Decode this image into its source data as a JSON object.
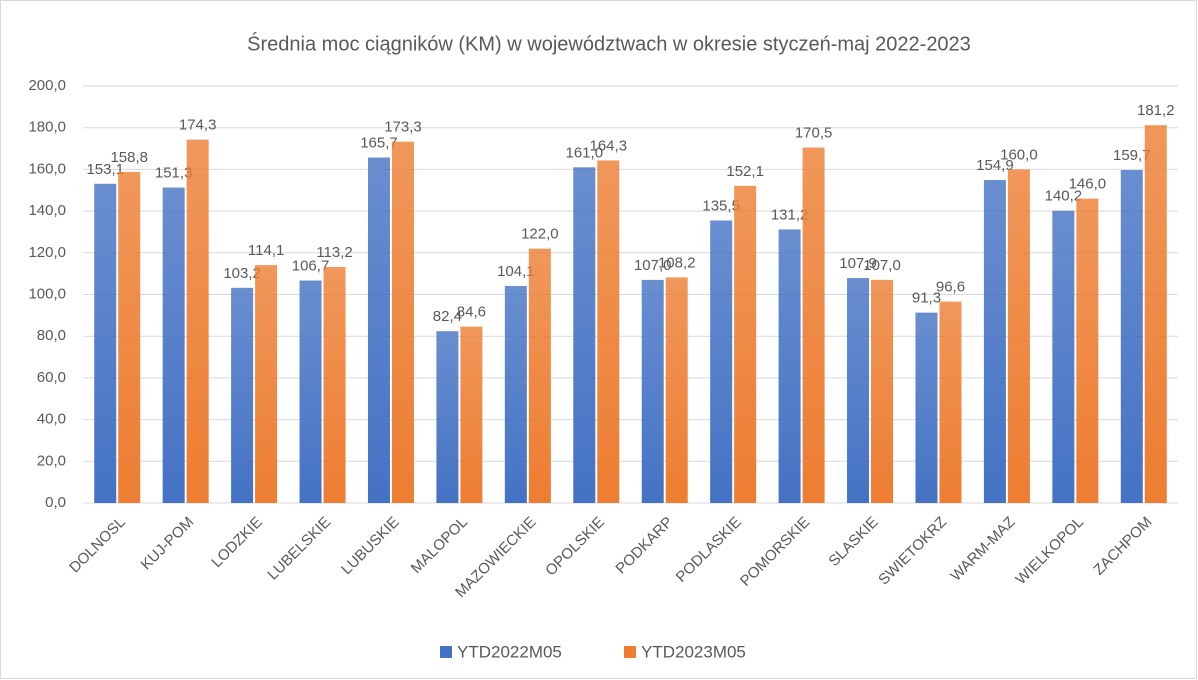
{
  "chart_data": {
    "type": "bar",
    "title": "Średnia moc ciągników (KM) w województwach w okresie styczeń-maj 2022-2023",
    "categories": [
      "DOLNOSL",
      "KUJ-POM",
      "LODZKIE",
      "LUBELSKIE",
      "LUBUSKIE",
      "MALOPOL",
      "MAZOWIECKIE",
      "OPOLSKIE",
      "PODKARP",
      "PODLASKIE",
      "POMORSKIE",
      "SLASKIE",
      "SWIETOKRZ",
      "WARM-MAZ",
      "WIELKOPOL",
      "ZACHPOM"
    ],
    "series": [
      {
        "name": "YTD2022M05",
        "color": "#4472c4",
        "values": [
          153.1,
          151.3,
          103.2,
          106.7,
          165.7,
          82.4,
          104.1,
          161.0,
          107.0,
          135.5,
          131.2,
          107.9,
          91.3,
          154.9,
          140.2,
          159.7
        ],
        "value_labels": [
          "153,1",
          "151,3",
          "103,2",
          "106,7",
          "165,7",
          "82,4",
          "104,1",
          "161,0",
          "107,0",
          "135,5",
          "131,2",
          "107,9",
          "91,3",
          "154,9",
          "140,2",
          "159,7"
        ]
      },
      {
        "name": "YTD2023M05",
        "color": "#ed7d31",
        "values": [
          158.8,
          174.3,
          114.1,
          113.2,
          173.3,
          84.6,
          122.0,
          164.3,
          108.2,
          152.1,
          170.5,
          107.0,
          96.6,
          160.0,
          146.0,
          181.2
        ],
        "value_labels": [
          "158,8",
          "174,3",
          "114,1",
          "113,2",
          "173,3",
          "84,6",
          "122,0",
          "164,3",
          "108,2",
          "152,1",
          "170,5",
          "107,0",
          "96,6",
          "160,0",
          "146,0",
          "181,2"
        ]
      }
    ],
    "ylim": [
      0,
      200
    ],
    "yticks": [
      {
        "value": 0,
        "label": "0,0"
      },
      {
        "value": 20,
        "label": "20,0"
      },
      {
        "value": 40,
        "label": "40,0"
      },
      {
        "value": 60,
        "label": "60,0"
      },
      {
        "value": 80,
        "label": "80,0"
      },
      {
        "value": 100,
        "label": "100,0"
      },
      {
        "value": 120,
        "label": "120,0"
      },
      {
        "value": 140,
        "label": "140,0"
      },
      {
        "value": 160,
        "label": "160,0"
      },
      {
        "value": 180,
        "label": "180,0"
      },
      {
        "value": 200,
        "label": "200,0"
      }
    ],
    "grid": true,
    "legend": "bottom"
  }
}
